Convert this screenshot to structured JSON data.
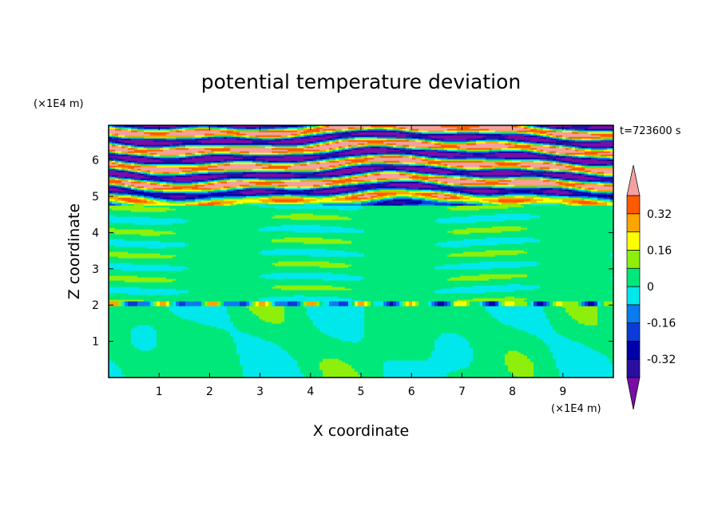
{
  "chart_data": {
    "type": "heatmap",
    "title": "potential temperature deviation",
    "xlabel": "X coordinate",
    "ylabel": "Z coordinate",
    "x_unit": "(×1E4 m)",
    "y_unit": "(×1E4 m)",
    "time_label": "t=723600 s",
    "xlim": [
      0,
      10
    ],
    "ylim": [
      0,
      6.96
    ],
    "x_ticks": [
      "1",
      "2",
      "3",
      "4",
      "5",
      "6",
      "7",
      "8",
      "9"
    ],
    "x_tick_values": [
      1,
      2,
      3,
      4,
      5,
      6,
      7,
      8,
      9
    ],
    "y_ticks": [
      "1",
      "2",
      "3",
      "4",
      "5",
      "6"
    ],
    "y_tick_values": [
      1,
      2,
      3,
      4,
      5,
      6
    ],
    "colorbar": {
      "levels": [
        -0.4,
        -0.32,
        -0.24,
        -0.16,
        -0.08,
        0,
        0.08,
        0.16,
        0.24,
        0.32,
        0.4
      ],
      "colors": [
        "#7a0da6",
        "#2a0ea0",
        "#0000a8",
        "#0a3ad8",
        "#0a7cf0",
        "#00e8ec",
        "#00e87a",
        "#8ef00a",
        "#ffff00",
        "#ffa500",
        "#ff5a00",
        "#f42a2a",
        "#f5a0a0"
      ],
      "labels": [
        "0.32",
        "0.16",
        "0",
        "-0.16",
        "-0.32"
      ],
      "label_values": [
        0.32,
        0.16,
        0,
        -0.16,
        -0.32
      ],
      "extend": "both"
    },
    "description_regions": {
      "lower_layer_z": [
        0,
        2
      ],
      "upper_layer_z": [
        4.8,
        6.96
      ]
    }
  }
}
